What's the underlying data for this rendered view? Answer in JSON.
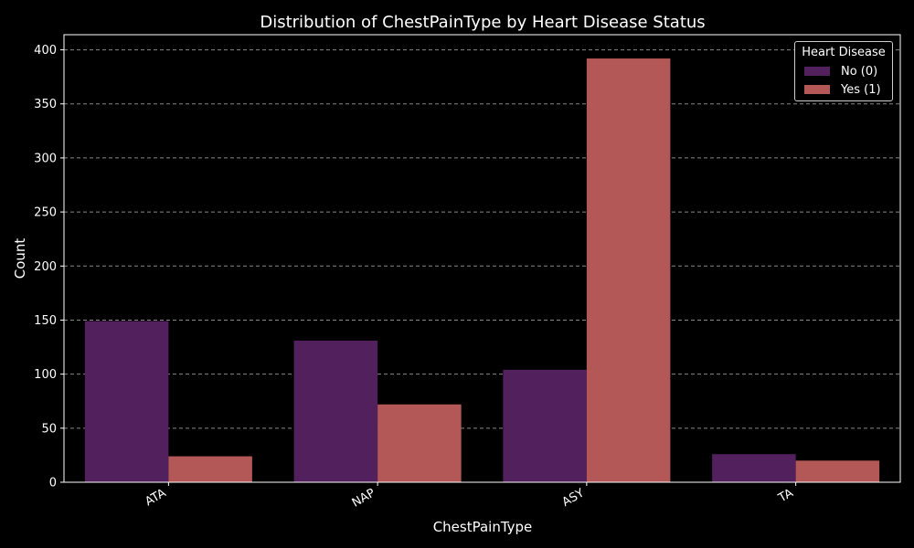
{
  "chart_data": {
    "type": "bar",
    "title": "Distribution of ChestPainType by Heart Disease Status",
    "xlabel": "ChestPainType",
    "ylabel": "Count",
    "categories": [
      "ATA",
      "NAP",
      "ASY",
      "TA"
    ],
    "series": [
      {
        "name": "No (0)",
        "values": [
          149,
          131,
          104,
          26
        ],
        "color": "#53205e"
      },
      {
        "name": "Yes (1)",
        "values": [
          24,
          72,
          392,
          20
        ],
        "color": "#b35856"
      }
    ],
    "ylim": [
      0,
      414
    ],
    "yticks": [
      0,
      50,
      100,
      150,
      200,
      250,
      300,
      350,
      400
    ],
    "grid": "y-dashed",
    "legend": {
      "title": "Heart Disease",
      "placement": "top-right"
    },
    "background": "#000000",
    "text_color": "#ffffff",
    "grid_color": "#888888"
  }
}
